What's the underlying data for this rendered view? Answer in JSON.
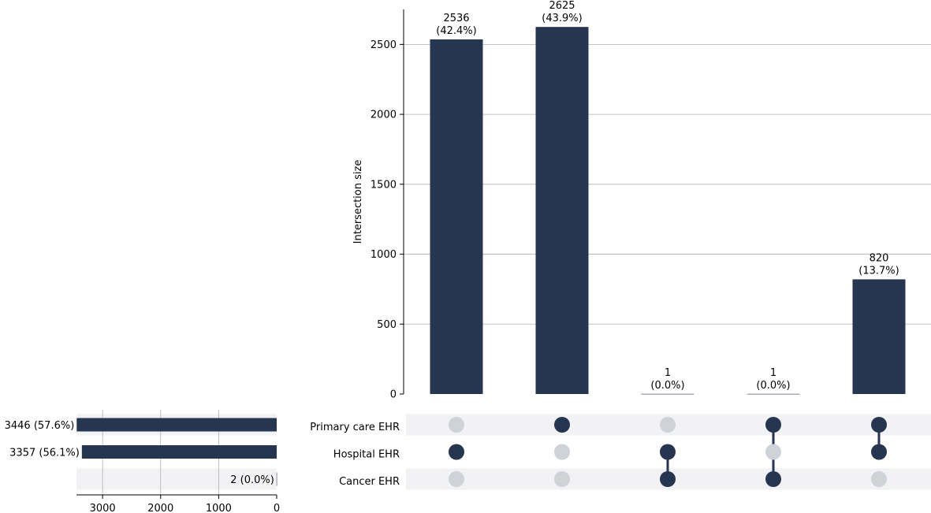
{
  "chart_data": {
    "type": "upset",
    "colors": {
      "bar": "#263550",
      "dot_inactive": "#cfd2d9",
      "row_band": "#f2f2f4",
      "grid": "#b0b0b0"
    },
    "intersection_axis": {
      "ylabel": "Intersection size",
      "ylim": [
        0,
        2750
      ],
      "ticks": [
        0,
        500,
        1000,
        1500,
        2000,
        2500
      ],
      "tick_labels": [
        "0",
        "500",
        "1000",
        "1500",
        "2000",
        "2500"
      ]
    },
    "sets": [
      {
        "name": "Primary care EHR",
        "size": 3446,
        "size_label": "3446 (57.6%)"
      },
      {
        "name": "Hospital EHR",
        "size": 3357,
        "size_label": "3357 (56.1%)"
      },
      {
        "name": "Cancer EHR",
        "size": 2,
        "size_label": "2 (0.0%)"
      }
    ],
    "set_size_axis": {
      "xlim": [
        3450,
        0
      ],
      "ticks": [
        3000,
        2000,
        1000,
        0
      ],
      "tick_labels": [
        "3000",
        "2000",
        "1000",
        "0"
      ]
    },
    "intersections": [
      {
        "members": [
          1
        ],
        "value": 2536,
        "count_label": "2536",
        "pct_label": "(42.4%)"
      },
      {
        "members": [
          0
        ],
        "value": 2625,
        "count_label": "2625",
        "pct_label": "(43.9%)"
      },
      {
        "members": [
          1,
          2
        ],
        "value": 1,
        "count_label": "1",
        "pct_label": "(0.0%)"
      },
      {
        "members": [
          0,
          2
        ],
        "value": 1,
        "count_label": "1",
        "pct_label": "(0.0%)"
      },
      {
        "members": [
          0,
          1
        ],
        "value": 820,
        "count_label": "820",
        "pct_label": "(13.7%)"
      }
    ]
  }
}
